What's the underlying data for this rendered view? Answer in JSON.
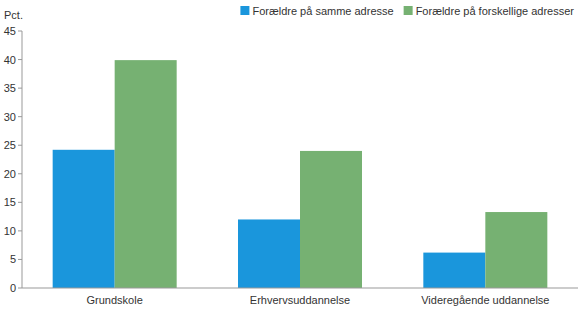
{
  "chart_data": {
    "type": "bar",
    "y_label": "Pct.",
    "categories": [
      "Grundskole",
      "Erhvervsuddannelse",
      "Videregående uddannelse"
    ],
    "series": [
      {
        "name": "Forældre på samme adresse",
        "color": "#1a96dc",
        "values": [
          24.2,
          12.0,
          6.2
        ]
      },
      {
        "name": "Forældre på forskellige adresser",
        "color": "#76b172",
        "values": [
          39.9,
          24.0,
          13.3
        ]
      }
    ],
    "ylim": [
      0,
      45
    ],
    "yticks": [
      0,
      5,
      10,
      15,
      20,
      25,
      30,
      35,
      40,
      45
    ],
    "grid": false,
    "legend": "upper-right"
  }
}
